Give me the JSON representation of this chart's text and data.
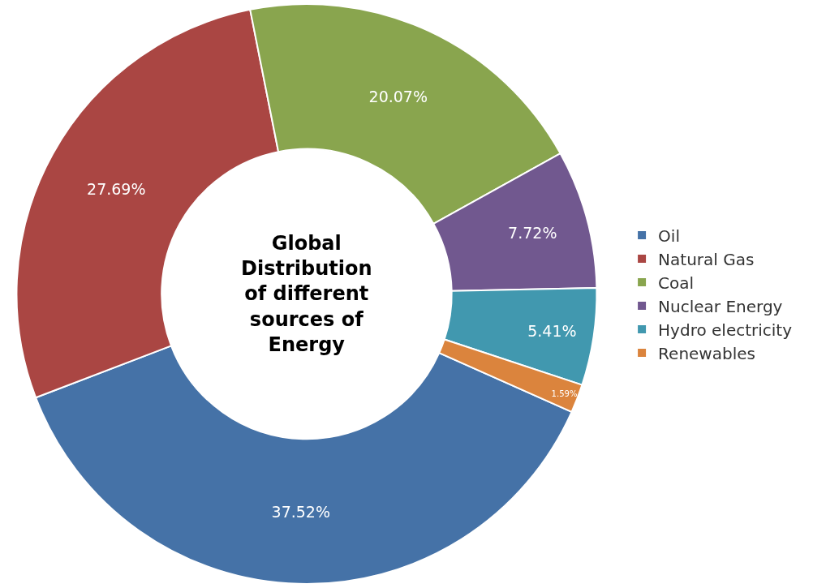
{
  "chart_data": {
    "type": "donut",
    "title": "Global Distribution of different sources of Energy",
    "categories": [
      "Oil",
      "Natural Gas",
      "Coal",
      "Nuclear Energy",
      "Hydro electricity",
      "Renewables"
    ],
    "values": [
      37.52,
      27.69,
      20.07,
      7.72,
      5.41,
      1.59
    ],
    "value_labels": [
      "37.52%",
      "27.69%",
      "20.07%",
      "7.72%",
      "5.41%",
      "1.59%"
    ],
    "colors": [
      "#4572a7",
      "#aa4643",
      "#89a54e",
      "#71588f",
      "#4198af",
      "#db843d"
    ],
    "legend": "right"
  }
}
